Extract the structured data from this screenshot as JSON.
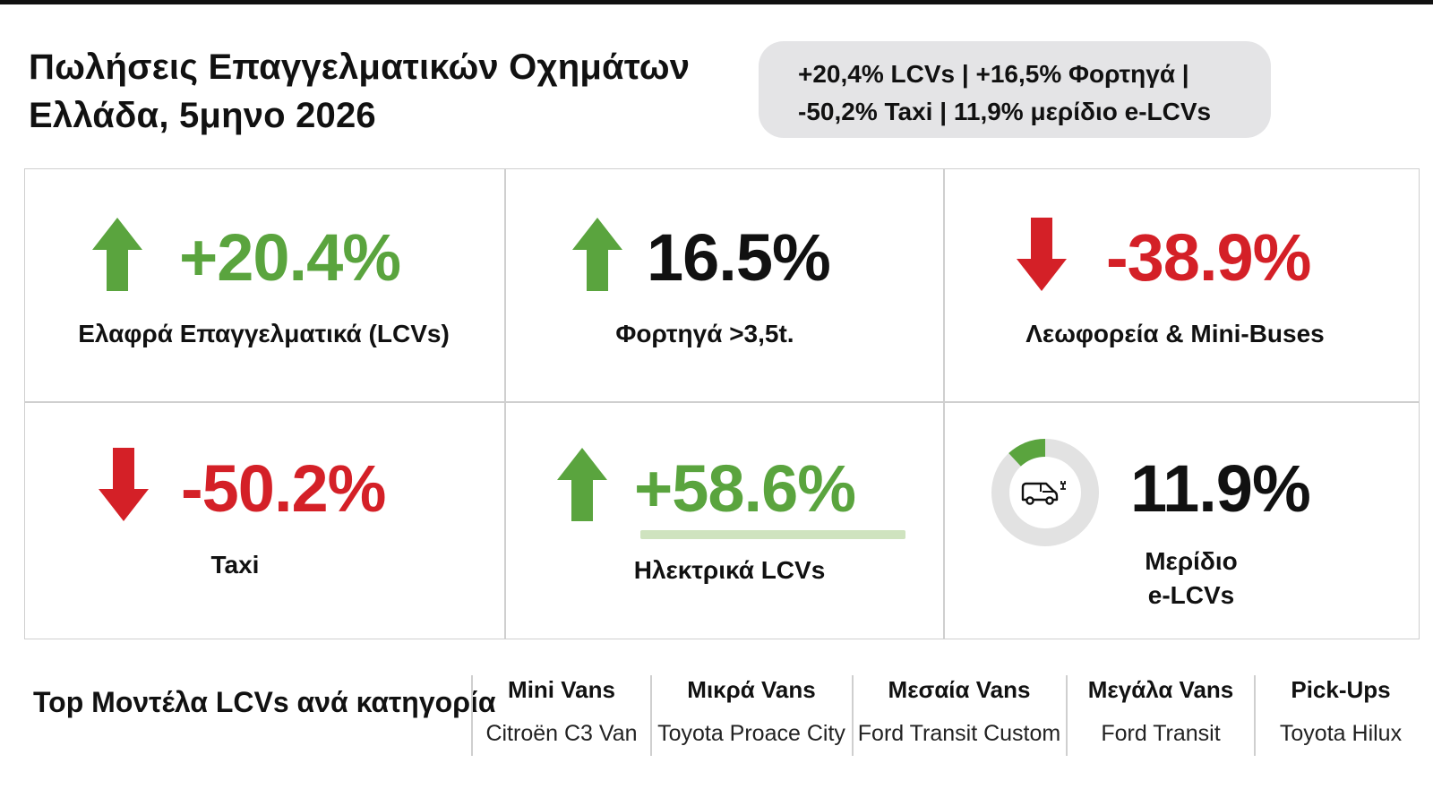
{
  "header": {
    "title_line1": "Πωλήσεις Επαγγελματικών Οχημάτων",
    "title_line2": "Ελλάδα, 5μηνο 2026",
    "summary_line1": "+20,4% LCVs  | +16,5% Φορτηγά |",
    "summary_line2": "-50,2% Taxi | 11,9% μερίδιο e-LCVs"
  },
  "stats": [
    {
      "value": "+20.4%",
      "label": "Ελαφρά Επαγγελματικά (LCVs)",
      "trend": "up",
      "icon": "arrow-up-icon"
    },
    {
      "value": "16.5%",
      "label": "Φορτηγά >3,5t.",
      "trend": "up",
      "icon": "arrow-up-icon"
    },
    {
      "value": "-38.9%",
      "label": "Λεωφορεία & Mini-Buses",
      "trend": "down",
      "icon": "arrow-down-icon"
    },
    {
      "value": "-50.2%",
      "label": "Taxi",
      "trend": "down",
      "icon": "arrow-down-icon"
    },
    {
      "value": "+58.6%",
      "label": "Ηλεκτρικά LCVs",
      "trend": "up",
      "icon": "arrow-up-icon"
    },
    {
      "value": "11.9%",
      "label_line1": "Μερίδιο",
      "label_line2": "e-LCVs",
      "share": 0.119,
      "icon": "electric-van-icon"
    }
  ],
  "models": {
    "title": "Top Μοντέλα LCVs ανά κατηγορία",
    "columns": [
      {
        "category": "Mini Vans",
        "model": "Citroën C3 Van"
      },
      {
        "category": "Μικρά Vans",
        "model": "Toyota Proace City"
      },
      {
        "category": "Μεσαία Vans",
        "model": "Ford Transit Custom"
      },
      {
        "category": "Μεγάλα Vans",
        "model": "Ford Transit"
      },
      {
        "category": "Pick-Ups",
        "model": "Toyota Hilux"
      }
    ]
  },
  "colors": {
    "up": "#5aa43e",
    "down": "#d42027",
    "bar": "#cfe3bf",
    "ring_track": "#e2e2e2"
  }
}
